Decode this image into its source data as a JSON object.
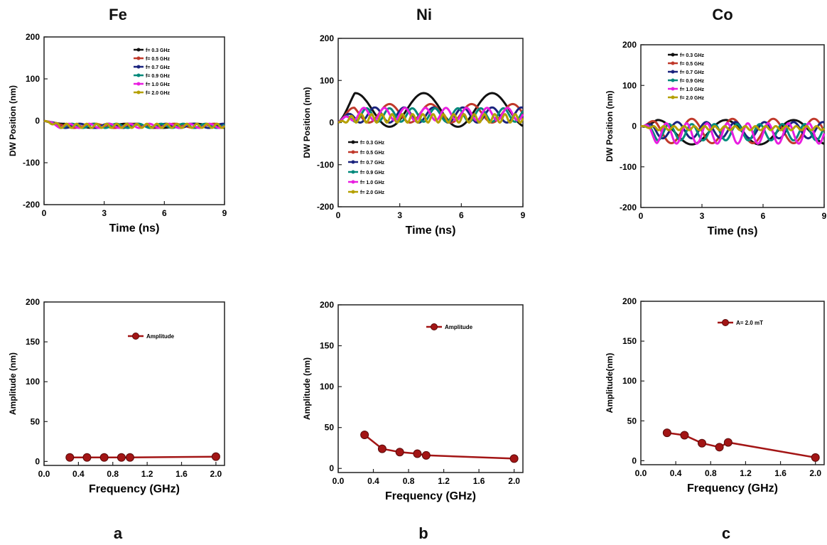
{
  "columns": [
    {
      "title": "Fe",
      "letter": "a"
    },
    {
      "title": "Ni",
      "letter": "b"
    },
    {
      "title": "Co",
      "letter": "c"
    }
  ],
  "colors": {
    "f=0.3": "#111111",
    "f=0.5": "#c0392b",
    "f=0.7": "#1a237e",
    "f=0.9": "#00897b",
    "f=1.0": "#e91ee0",
    "f=2.0": "#b5a000",
    "amplitude": "#a31515"
  },
  "chart_data": [
    {
      "type": "line",
      "panel": "Fe-time",
      "xlabel": "Time (ns)",
      "ylabel": "DW Position (nm)",
      "xlim": [
        0,
        9
      ],
      "ylim": [
        -200,
        200
      ],
      "xticks": [
        "0",
        "3",
        "6",
        "9"
      ],
      "yticks": [
        "200",
        "100",
        "0",
        "-100",
        "-200"
      ],
      "legend_position": "top-right",
      "series": [
        {
          "name": "f= 0.3 GHz",
          "freq": 0.3,
          "amp": 5,
          "offset": -12
        },
        {
          "name": "f= 0.5 GHz",
          "freq": 0.5,
          "amp": 5,
          "offset": -12
        },
        {
          "name": "f= 0.7 GHz",
          "freq": 0.7,
          "amp": 5,
          "offset": -12
        },
        {
          "name": "f= 0.9 GHz",
          "freq": 0.9,
          "amp": 5,
          "offset": -12
        },
        {
          "name": "f= 1.0 GHz",
          "freq": 1.0,
          "amp": 5,
          "offset": -12
        },
        {
          "name": "f= 2.0 GHz",
          "freq": 2.0,
          "amp": 5,
          "offset": -12
        }
      ]
    },
    {
      "type": "line",
      "panel": "Ni-time",
      "xlabel": "Time (ns)",
      "ylabel": "DW Position (nm)",
      "xlim": [
        0,
        9
      ],
      "ylim": [
        -200,
        200
      ],
      "xticks": [
        "0",
        "3",
        "6",
        "9"
      ],
      "yticks": [
        "200",
        "100",
        "0",
        "-100",
        "-200"
      ],
      "legend_position": "bottom-left",
      "series": [
        {
          "name": "f= 0.3 GHz",
          "freq": 0.3,
          "amp": 40,
          "offset": 30
        },
        {
          "name": "f= 0.5 GHz",
          "freq": 0.5,
          "amp": 22,
          "offset": 22
        },
        {
          "name": "f= 0.7 GHz",
          "freq": 0.7,
          "amp": 18,
          "offset": 18
        },
        {
          "name": "f= 0.9 GHz",
          "freq": 0.9,
          "amp": 16,
          "offset": 18
        },
        {
          "name": "f= 1.0 GHz",
          "freq": 1.0,
          "amp": 15,
          "offset": 20
        },
        {
          "name": "f= 2.0 GHz",
          "freq": 2.0,
          "amp": 10,
          "offset": 10
        }
      ]
    },
    {
      "type": "line",
      "panel": "Co-time",
      "xlabel": "Time (ns)",
      "ylabel": "DW Position (nm)",
      "xlim": [
        0,
        9
      ],
      "ylim": [
        -200,
        200
      ],
      "xticks": [
        "0",
        "3",
        "6",
        "9"
      ],
      "yticks": [
        "200",
        "100",
        "0",
        "-100",
        "-200"
      ],
      "legend_position": "top-left",
      "series": [
        {
          "name": "f= 0.3 GHz",
          "freq": 0.3,
          "amp": 30,
          "offset": -15
        },
        {
          "name": "f= 0.5 GHz",
          "freq": 0.5,
          "amp": 30,
          "offset": -12
        },
        {
          "name": "f= 0.7 GHz",
          "freq": 0.7,
          "amp": 20,
          "offset": -10
        },
        {
          "name": "f= 0.9 GHz",
          "freq": 0.9,
          "amp": 20,
          "offset": -15
        },
        {
          "name": "f= 1.0 GHz",
          "freq": 1.0,
          "amp": 25,
          "offset": -18
        },
        {
          "name": "f= 2.0 GHz",
          "freq": 2.0,
          "amp": 5,
          "offset": -5
        }
      ]
    },
    {
      "type": "line",
      "panel": "Fe-amplitude",
      "xlabel": "Frequency (GHz)",
      "ylabel": "Amplitude (nm)",
      "xlim": [
        0,
        2.1
      ],
      "ylim": [
        -5,
        200
      ],
      "xticks": [
        "0.0",
        "0.4",
        "0.8",
        "1.2",
        "1.6",
        "2.0"
      ],
      "yticks": [
        "200",
        "150",
        "100",
        "50",
        "0"
      ],
      "legend_position": "top-center",
      "series": [
        {
          "name": "Amplitude",
          "x": [
            0.3,
            0.5,
            0.7,
            0.9,
            1.0,
            2.0
          ],
          "y": [
            5,
            5,
            5,
            5,
            5,
            6
          ]
        }
      ]
    },
    {
      "type": "line",
      "panel": "Ni-amplitude",
      "xlabel": "Frequency (GHz)",
      "ylabel": "Amplitude (nm)",
      "xlim": [
        0,
        2.1
      ],
      "ylim": [
        -5,
        200
      ],
      "xticks": [
        "0.0",
        "0.4",
        "0.8",
        "1.2",
        "1.6",
        "2.0"
      ],
      "yticks": [
        "200",
        "150",
        "100",
        "50",
        "0"
      ],
      "legend_position": "top-center",
      "series": [
        {
          "name": "Amplitude",
          "x": [
            0.3,
            0.5,
            0.7,
            0.9,
            1.0,
            2.0
          ],
          "y": [
            41,
            24,
            20,
            18,
            16,
            12
          ]
        }
      ]
    },
    {
      "type": "line",
      "panel": "Co-amplitude",
      "xlabel": "Frequency (GHz)",
      "ylabel": "Amplitude(nm)",
      "xlim": [
        0,
        2.1
      ],
      "ylim": [
        -5,
        200
      ],
      "xticks": [
        "0.0",
        "0.4",
        "0.8",
        "1.2",
        "1.6",
        "2.0"
      ],
      "yticks": [
        "200",
        "150",
        "100",
        "50",
        "0"
      ],
      "legend_position": "top-center",
      "series": [
        {
          "name": "A= 2.0 mT",
          "x": [
            0.3,
            0.5,
            0.7,
            0.9,
            1.0,
            2.0
          ],
          "y": [
            35,
            32,
            22,
            17,
            23,
            4
          ]
        }
      ]
    }
  ]
}
